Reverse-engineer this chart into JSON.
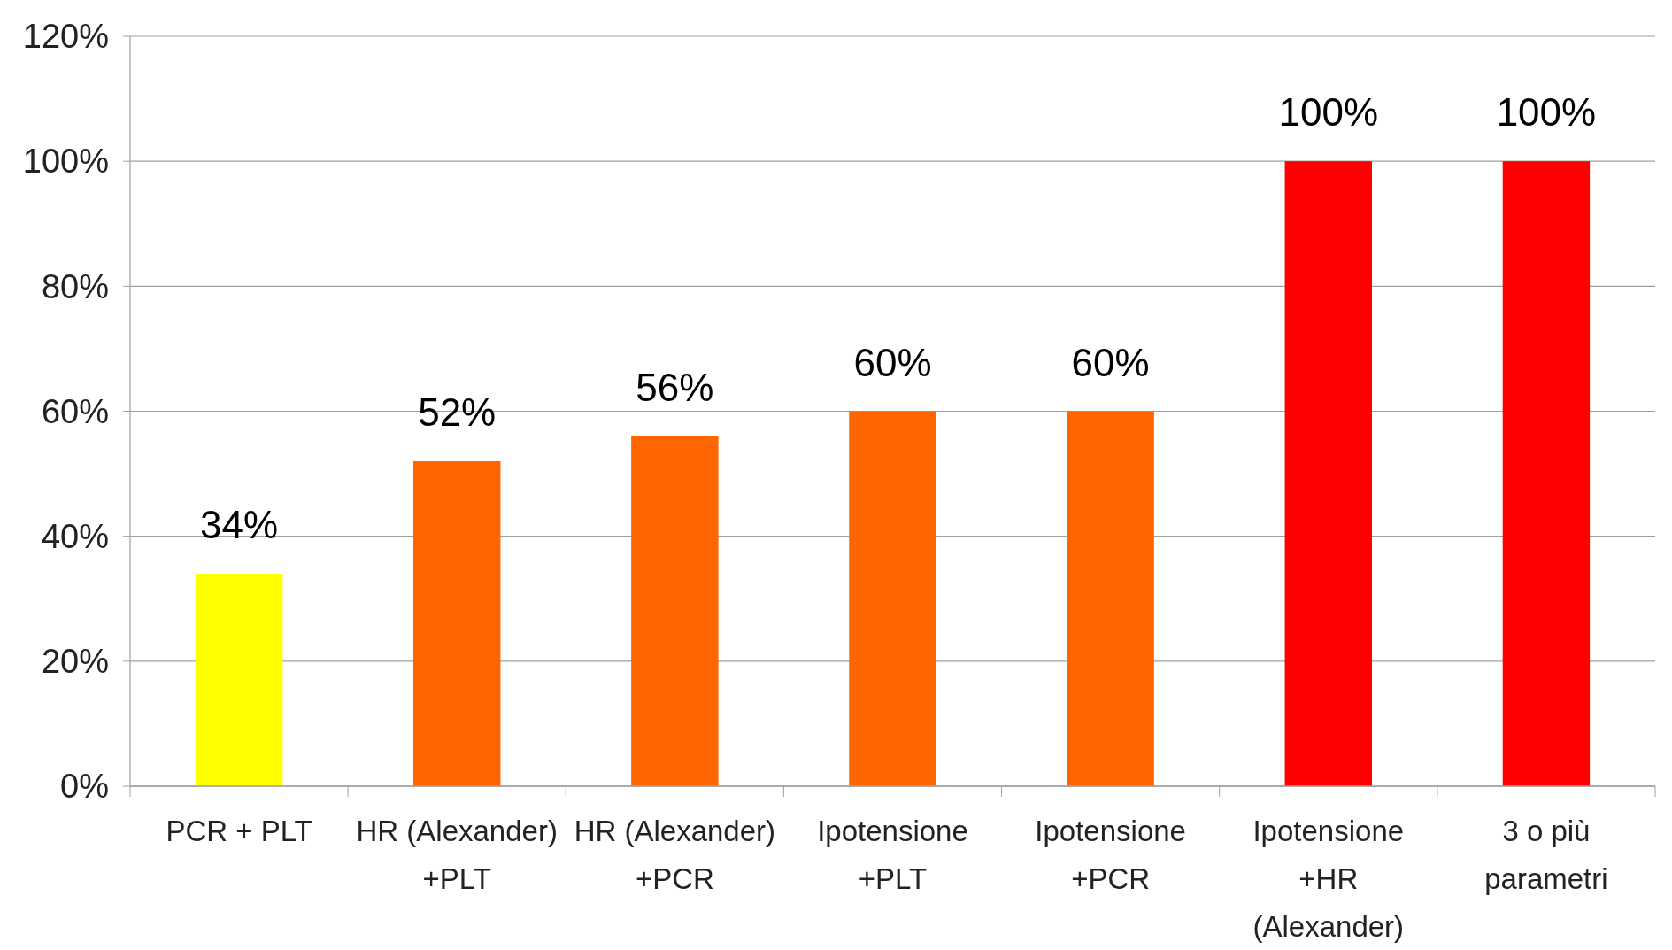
{
  "chart_data": {
    "type": "bar",
    "categories": [
      "PCR + PLT",
      "HR (Alexander) +PLT",
      "HR (Alexander) +PCR",
      "Ipotensione +PLT",
      "Ipotensione +PCR",
      "Ipotensione +HR (Alexander)",
      "3 o più parametri"
    ],
    "values": [
      34,
      52,
      56,
      60,
      60,
      100,
      100
    ],
    "colors": [
      "#ffff00",
      "#ff6600",
      "#ff6600",
      "#ff6600",
      "#ff6600",
      "#ff0000",
      "#ff0000"
    ],
    "value_labels": [
      "34%",
      "52%",
      "56%",
      "60%",
      "60%",
      "100%",
      "100%"
    ],
    "ylim": [
      0,
      120
    ],
    "yticks": [
      {
        "value": 0,
        "label": "0%"
      },
      {
        "value": 20,
        "label": "20%"
      },
      {
        "value": 40,
        "label": "40%"
      },
      {
        "value": 60,
        "label": "60%"
      },
      {
        "value": 80,
        "label": "80%"
      },
      {
        "value": 100,
        "label": "100%"
      },
      {
        "value": 120,
        "label": "120%"
      }
    ],
    "grid": "y"
  }
}
